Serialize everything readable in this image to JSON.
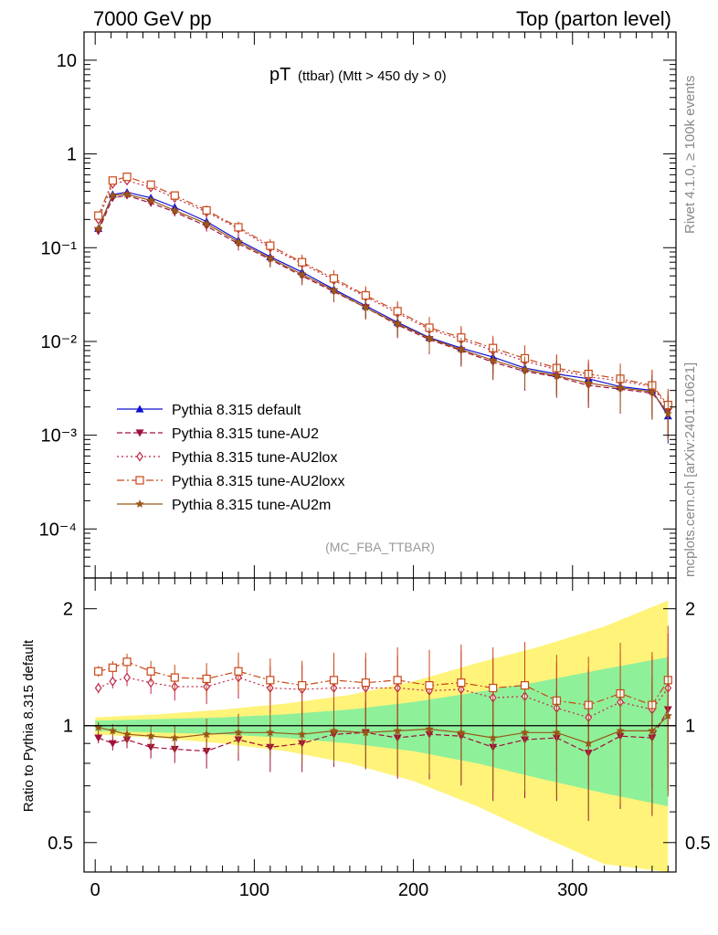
{
  "header": {
    "left": "7000 GeV pp",
    "right": "Top (parton level)"
  },
  "side_labels": {
    "version": "Rivet 4.1.0, ≥ 100k events",
    "url": "mcplots.cern.ch [arXiv:2401.10621]"
  },
  "colors": {
    "default": "#1010d0",
    "au2": "#a0103a",
    "au2lox": "#c02848",
    "au2loxx": "#c84818",
    "au2m": "#985818",
    "band_yellow": "#fff37a",
    "band_green": "#8ff09a"
  },
  "chart_data": [
    {
      "type": "scatter",
      "title": "pT",
      "title_sub": "(ttbar) (Mtt > 450 dy > 0)",
      "analysis": "(MC_FBA_TTBAR)",
      "xlabel": "",
      "ylabel": "",
      "yscale": "log",
      "xlim": [
        -7,
        365
      ],
      "ylim": [
        3e-05,
        20
      ],
      "ytick_labels": [
        "10",
        "1",
        "10⁻¹",
        "10⁻²",
        "10⁻³",
        "10⁻⁴"
      ],
      "ytick_values": [
        10,
        1,
        0.1,
        0.01,
        0.001,
        0.0001
      ],
      "legend_position": "lower-left",
      "series": [
        {
          "key": "default",
          "name": "Pythia 8.315 default",
          "marker": "triangle-up",
          "dash": "",
          "x": [
            2,
            11,
            20,
            35,
            50,
            70,
            90,
            110,
            130,
            150,
            170,
            190,
            210,
            230,
            250,
            270,
            290,
            310,
            330,
            350,
            360
          ],
          "values": [
            0.16,
            0.37,
            0.39,
            0.34,
            0.27,
            0.19,
            0.12,
            0.08,
            0.055,
            0.036,
            0.024,
            0.016,
            0.011,
            0.0085,
            0.0068,
            0.0052,
            0.0045,
            0.004,
            0.0033,
            0.003,
            0.0016
          ]
        },
        {
          "key": "au2",
          "name": "Pythia 8.315 tune-AU2",
          "marker": "triangle-down",
          "dash": "6,3",
          "x": [
            2,
            11,
            20,
            35,
            50,
            70,
            90,
            110,
            130,
            150,
            170,
            190,
            210,
            230,
            250,
            270,
            290,
            310,
            330,
            350,
            360
          ],
          "values": [
            0.15,
            0.34,
            0.36,
            0.3,
            0.24,
            0.17,
            0.11,
            0.075,
            0.05,
            0.034,
            0.023,
            0.015,
            0.0105,
            0.008,
            0.006,
            0.0048,
            0.0042,
            0.0034,
            0.0031,
            0.0028,
            0.0018
          ]
        },
        {
          "key": "au2lox",
          "name": "Pythia 8.315 tune-AU2lox",
          "marker": "diamond-open",
          "dash": "2,3",
          "x": [
            2,
            11,
            20,
            35,
            50,
            70,
            90,
            110,
            130,
            150,
            170,
            190,
            210,
            230,
            250,
            270,
            290,
            310,
            330,
            350,
            360
          ],
          "values": [
            0.2,
            0.48,
            0.52,
            0.44,
            0.34,
            0.24,
            0.16,
            0.1,
            0.068,
            0.045,
            0.03,
            0.02,
            0.0135,
            0.0105,
            0.008,
            0.0062,
            0.005,
            0.0042,
            0.0038,
            0.0033,
            0.002
          ]
        },
        {
          "key": "au2loxx",
          "name": "Pythia 8.315 tune-AU2loxx",
          "marker": "square-open",
          "dash": "8,3,2,3",
          "x": [
            2,
            11,
            20,
            35,
            50,
            70,
            90,
            110,
            130,
            150,
            170,
            190,
            210,
            230,
            250,
            270,
            290,
            310,
            330,
            350,
            360
          ],
          "values": [
            0.22,
            0.52,
            0.57,
            0.47,
            0.36,
            0.25,
            0.165,
            0.105,
            0.07,
            0.047,
            0.031,
            0.021,
            0.014,
            0.011,
            0.0085,
            0.0066,
            0.0052,
            0.0045,
            0.004,
            0.0034,
            0.0021
          ]
        },
        {
          "key": "au2m",
          "name": "Pythia 8.315 tune-AU2m",
          "marker": "star",
          "dash": "",
          "x": [
            2,
            11,
            20,
            35,
            50,
            70,
            90,
            110,
            130,
            150,
            170,
            190,
            210,
            230,
            250,
            270,
            290,
            310,
            330,
            350,
            360
          ],
          "values": [
            0.16,
            0.36,
            0.37,
            0.32,
            0.25,
            0.18,
            0.115,
            0.077,
            0.052,
            0.035,
            0.023,
            0.0155,
            0.0108,
            0.0082,
            0.0063,
            0.005,
            0.0043,
            0.0036,
            0.0032,
            0.0029,
            0.0017
          ]
        }
      ]
    },
    {
      "type": "scatter",
      "ylabel": "Ratio to Pythia 8.315 default",
      "xlabel": "",
      "yscale": "log",
      "xlim": [
        -7,
        365
      ],
      "ylim": [
        0.42,
        2.4
      ],
      "ytick_labels": [
        "2",
        "1",
        "0.5"
      ],
      "ytick_values": [
        2,
        1,
        0.5
      ],
      "xtick_labels": [
        "0",
        "100",
        "200",
        "300"
      ],
      "xtick_values": [
        0,
        100,
        200,
        300
      ],
      "bands": {
        "x": [
          0,
          40,
          80,
          120,
          160,
          200,
          240,
          280,
          320,
          360
        ],
        "yellow_upper": [
          1.05,
          1.07,
          1.1,
          1.14,
          1.2,
          1.3,
          1.45,
          1.6,
          1.8,
          2.1
        ],
        "yellow_lower": [
          0.95,
          0.93,
          0.9,
          0.86,
          0.8,
          0.72,
          0.62,
          0.52,
          0.44,
          0.42
        ],
        "green_upper": [
          1.03,
          1.04,
          1.05,
          1.07,
          1.1,
          1.15,
          1.22,
          1.3,
          1.4,
          1.5
        ],
        "green_lower": [
          0.97,
          0.96,
          0.95,
          0.93,
          0.9,
          0.86,
          0.8,
          0.73,
          0.67,
          0.62
        ]
      },
      "series": [
        {
          "key": "au2",
          "name": "Pythia 8.315 tune-AU2",
          "x": [
            2,
            11,
            20,
            35,
            50,
            70,
            90,
            110,
            130,
            150,
            170,
            190,
            210,
            230,
            250,
            270,
            290,
            310,
            330,
            350,
            360
          ],
          "values": [
            0.93,
            0.9,
            0.92,
            0.88,
            0.87,
            0.86,
            0.92,
            0.88,
            0.9,
            0.95,
            0.96,
            0.93,
            0.95,
            0.94,
            0.88,
            0.92,
            0.93,
            0.85,
            0.94,
            0.93,
            1.1
          ]
        },
        {
          "key": "au2lox",
          "name": "Pythia 8.315 tune-AU2lox",
          "x": [
            2,
            11,
            20,
            35,
            50,
            70,
            90,
            110,
            130,
            150,
            170,
            190,
            210,
            230,
            250,
            270,
            290,
            310,
            330,
            350,
            360
          ],
          "values": [
            1.25,
            1.3,
            1.33,
            1.29,
            1.26,
            1.26,
            1.33,
            1.25,
            1.24,
            1.25,
            1.25,
            1.25,
            1.23,
            1.24,
            1.18,
            1.19,
            1.11,
            1.05,
            1.15,
            1.1,
            1.25
          ]
        },
        {
          "key": "au2loxx",
          "name": "Pythia 8.315 tune-AU2loxx",
          "x": [
            2,
            11,
            20,
            35,
            50,
            70,
            90,
            110,
            130,
            150,
            170,
            190,
            210,
            230,
            250,
            270,
            290,
            310,
            330,
            350,
            360
          ],
          "values": [
            1.38,
            1.41,
            1.46,
            1.38,
            1.33,
            1.32,
            1.38,
            1.31,
            1.27,
            1.31,
            1.29,
            1.31,
            1.27,
            1.29,
            1.25,
            1.27,
            1.16,
            1.13,
            1.21,
            1.13,
            1.31
          ]
        },
        {
          "key": "au2m",
          "name": "Pythia 8.315 tune-AU2m",
          "x": [
            2,
            11,
            20,
            35,
            50,
            70,
            90,
            110,
            130,
            150,
            170,
            190,
            210,
            230,
            250,
            270,
            290,
            310,
            330,
            350,
            360
          ],
          "values": [
            0.99,
            0.97,
            0.95,
            0.94,
            0.93,
            0.95,
            0.96,
            0.96,
            0.95,
            0.97,
            0.96,
            0.97,
            0.98,
            0.96,
            0.93,
            0.96,
            0.96,
            0.9,
            0.97,
            0.97,
            1.06
          ]
        }
      ]
    }
  ]
}
